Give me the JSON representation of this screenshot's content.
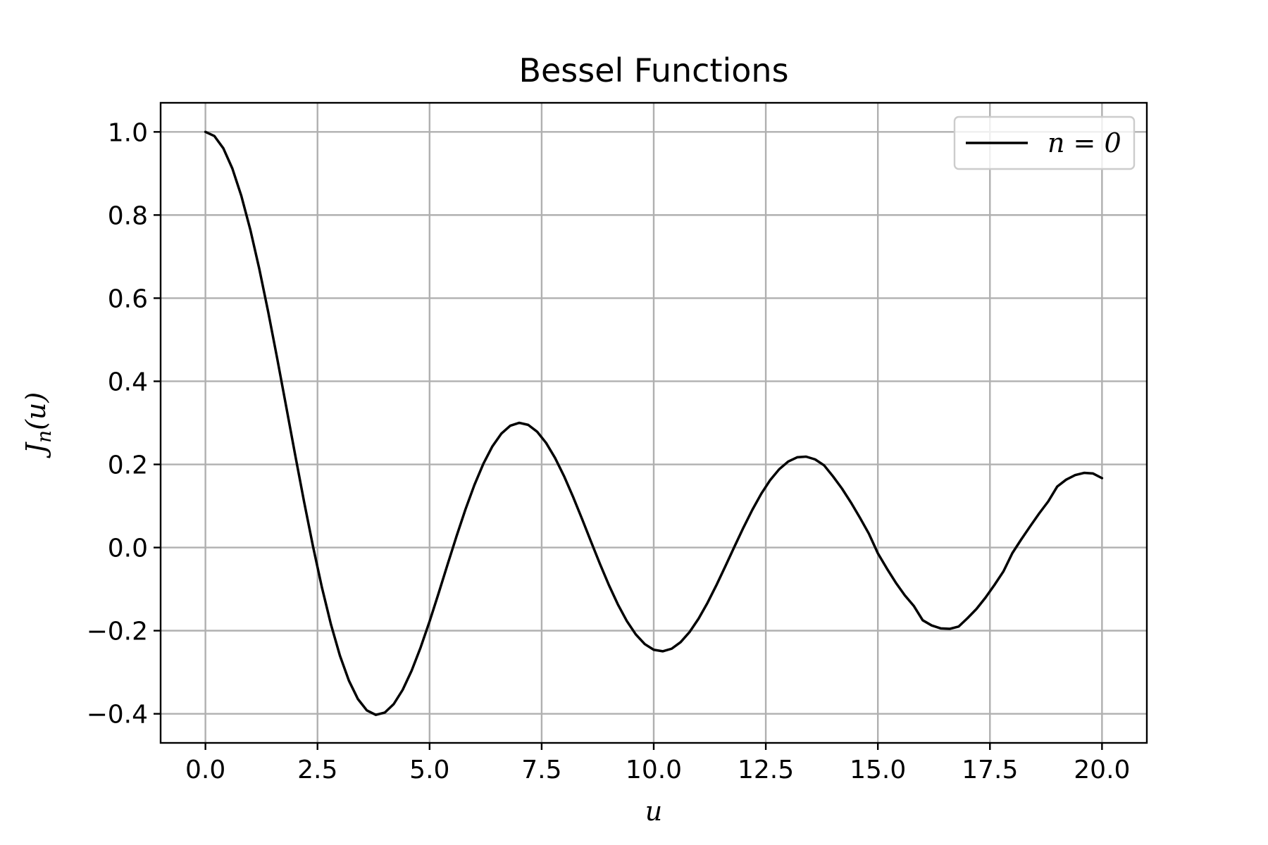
{
  "chart_data": {
    "type": "line",
    "title": "Bessel Functions",
    "xlabel": "u",
    "ylabel_main": "J",
    "ylabel_sub": "n",
    "ylabel_tail": "(u)",
    "xlim": [
      -1,
      21
    ],
    "ylim": [
      -0.47,
      1.07
    ],
    "xticks": [
      0,
      2.5,
      5,
      7.5,
      10,
      12.5,
      15,
      17.5,
      20
    ],
    "xtick_labels": [
      "0.0",
      "2.5",
      "5.0",
      "7.5",
      "10.0",
      "12.5",
      "15.0",
      "17.5",
      "20.0"
    ],
    "yticks": [
      -0.4,
      -0.2,
      0,
      0.2,
      0.4,
      0.6,
      0.8,
      1.0
    ],
    "ytick_labels": [
      "−0.4",
      "−0.2",
      "0.0",
      "0.2",
      "0.4",
      "0.6",
      "0.8",
      "1.0"
    ],
    "grid": true,
    "legend": {
      "placement": "top-right",
      "label": "n = 0"
    },
    "series": [
      {
        "name": "n = 0",
        "color": "#000000",
        "x": [
          0,
          0.2,
          0.4,
          0.6,
          0.8,
          1.0,
          1.2,
          1.4,
          1.6,
          1.8,
          2.0,
          2.2,
          2.4,
          2.6,
          2.8,
          3.0,
          3.2,
          3.4,
          3.6,
          3.8,
          4.0,
          4.2,
          4.4,
          4.6,
          4.8,
          5.0,
          5.2,
          5.4,
          5.6,
          5.8,
          6.0,
          6.2,
          6.4,
          6.6,
          6.8,
          7.0,
          7.2,
          7.4,
          7.6,
          7.8,
          8.0,
          8.2,
          8.4,
          8.6,
          8.8,
          9.0,
          9.2,
          9.4,
          9.6,
          9.8,
          10.0,
          10.2,
          10.4,
          10.6,
          10.8,
          11.0,
          11.2,
          11.4,
          11.6,
          11.8,
          12.0,
          12.2,
          12.4,
          12.6,
          12.8,
          13.0,
          13.2,
          13.4,
          13.6,
          13.8,
          14.0,
          14.2,
          14.4,
          14.6,
          14.8,
          15.0,
          15.2,
          15.4,
          15.6,
          15.8,
          16.0,
          16.2,
          16.4,
          16.6,
          16.8,
          17.0,
          17.2,
          17.4,
          17.6,
          17.8,
          18.0,
          18.2,
          18.4,
          18.6,
          18.8,
          19.0,
          19.2,
          19.4,
          19.6,
          19.8,
          20.0
        ],
        "y": [
          1.0,
          0.99,
          0.9604,
          0.912,
          0.8463,
          0.7652,
          0.6711,
          0.5669,
          0.4554,
          0.34,
          0.2239,
          0.1104,
          0.0025,
          -0.0968,
          -0.185,
          -0.2601,
          -0.3202,
          -0.3643,
          -0.3918,
          -0.4026,
          -0.3971,
          -0.3766,
          -0.3423,
          -0.2961,
          -0.2404,
          -0.1776,
          -0.1103,
          -0.0412,
          0.0269,
          0.0917,
          0.1506,
          0.2017,
          0.2433,
          0.274,
          0.2931,
          0.3001,
          0.2951,
          0.2786,
          0.2516,
          0.2154,
          0.1717,
          0.1222,
          0.0692,
          0.0146,
          -0.0392,
          -0.0903,
          -0.1367,
          -0.1768,
          -0.209,
          -0.2323,
          -0.2459,
          -0.2496,
          -0.2434,
          -0.2276,
          -0.2032,
          -0.1712,
          -0.133,
          -0.0902,
          -0.0446,
          0.002,
          0.0477,
          0.0908,
          0.1296,
          0.1626,
          0.1885,
          0.2069,
          0.2171,
          0.2187,
          0.2121,
          0.1978,
          0.1711,
          0.1418,
          0.1083,
          0.0717,
          0.0333,
          -0.0139,
          -0.0503,
          -0.0845,
          -0.1149,
          -0.1402,
          -0.1749,
          -0.1874,
          -0.1944,
          -0.1956,
          -0.1902,
          -0.1699,
          -0.1477,
          -0.1206,
          -0.0901,
          -0.0576,
          -0.0134,
          0.0198,
          0.0515,
          0.0823,
          0.1109,
          0.1466,
          0.1633,
          0.1743,
          0.1797,
          0.1782,
          0.167
        ]
      }
    ]
  }
}
